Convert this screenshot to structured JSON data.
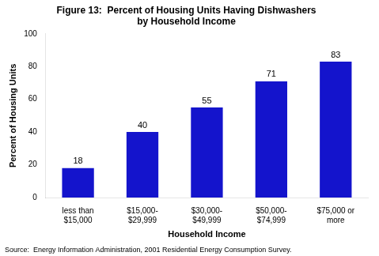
{
  "chart_data": {
    "type": "bar",
    "title": "Figure 13:  Percent of Housing Units Having Dishwashers\nby Household Income",
    "categories": [
      "less than\n$15,000",
      "$15,000-\n$29,999",
      "$30,000-\n$49,999",
      "$50,000-\n$74,999",
      "$75,000 or\nmore"
    ],
    "values": [
      18,
      40,
      55,
      71,
      83
    ],
    "color": "#1414CC",
    "xlabel": "Household Income",
    "ylabel": "Percent of Housing Units",
    "ylim": [
      0,
      100
    ],
    "yticks": [
      0,
      20,
      40,
      60,
      80,
      100
    ],
    "grid": false,
    "data_labels": true,
    "source": "Source:  Energy Information Administration, 2001 Residential Energy Consumption Survey."
  }
}
